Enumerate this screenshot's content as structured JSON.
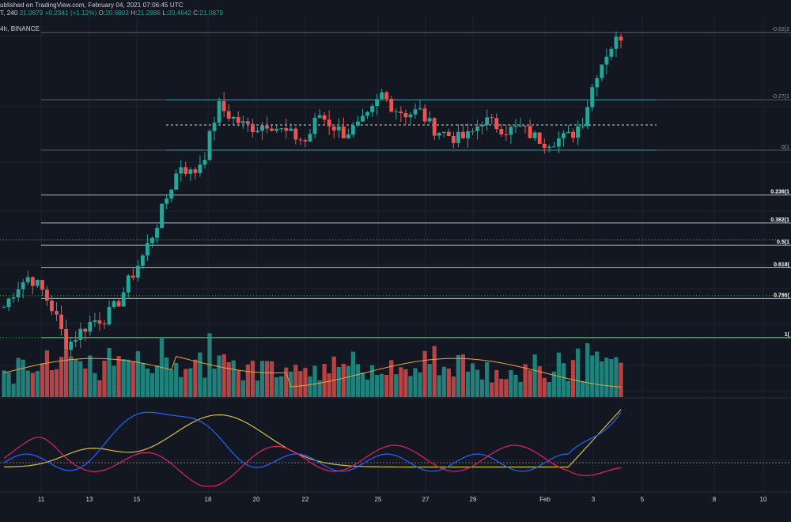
{
  "header": {
    "published": "ublished on TradingView.com, February 04, 2021 07:06:45 UTC",
    "symbol_line_prefix": "T, 240",
    "last": "21.0879",
    "change": "+0.2341 (+1.12%)",
    "o_label": "O:",
    "o_value": "20.6903",
    "h_label": "H:",
    "h_value": "21.2886",
    "l_label": "L:",
    "l_value": "20.4642",
    "c_label": "C:",
    "c_value": "21.0879",
    "sub_prefix": "4h,",
    "exchange": "BINANCE"
  },
  "colors": {
    "background": "#131722",
    "grid": "#1f2330",
    "up": "#26a69a",
    "down": "#ef5350",
    "fib": "#b2b5be",
    "range": "#1f9aa0",
    "green_dotted": "#2ecc40",
    "ma_volume": "#e8a33d",
    "osc_blue": "#2962ff",
    "osc_yellow": "#d4c13b",
    "osc_pink": "#e91e63"
  },
  "chart_data": {
    "type": "candlestick",
    "timeframe": "4h",
    "x_tick_labels": [
      "11",
      "13",
      "15",
      "18",
      "20",
      "22",
      "25",
      "27",
      "29",
      "Feb",
      "3",
      "5",
      "8",
      "10"
    ],
    "fib_levels": [
      {
        "label": "-0.62(2",
        "price": 23.4
      },
      {
        "label": "-0.27(1",
        "price": 21.0
      },
      {
        "label": "0(1",
        "price": 19.2
      },
      {
        "label": "0.236(1",
        "price": 17.6
      },
      {
        "label": "0.382(1",
        "price": 16.6
      },
      {
        "label": "0.5(1",
        "price": 15.8
      },
      {
        "label": "0.618(",
        "price": 15.0
      },
      {
        "label": "0.786(",
        "price": 13.9
      },
      {
        "label": "1(",
        "price": 12.5
      }
    ],
    "range_box": {
      "top": 21.0,
      "mid": 20.1,
      "bottom": 19.2
    },
    "green_dotted_levels": [
      16.0,
      14.0,
      12.5
    ],
    "price_min": 11.0,
    "price_max": 24.0,
    "price_path": [
      13.6,
      14.3,
      14.7,
      14.2,
      13.4,
      12.2,
      12.7,
      13.1,
      13.2,
      13.7,
      14.6,
      15.4,
      16.4,
      17.6,
      18.7,
      18.3,
      19.1,
      20.8,
      20.4,
      20.1,
      20.0,
      20.2,
      19.9,
      19.7,
      19.5,
      20.5,
      20.1,
      19.8,
      20.0,
      20.4,
      21.2,
      20.7,
      20.5,
      20.6,
      20.0,
      19.8,
      19.6,
      19.7,
      20.3,
      20.1,
      19.9,
      20.0,
      19.7,
      19.5,
      19.6,
      19.7,
      20.3,
      21.9,
      22.8,
      23.3
    ],
    "volume_ylim": [
      0,
      100
    ],
    "oscillator_ylim": [
      0,
      100
    ]
  }
}
